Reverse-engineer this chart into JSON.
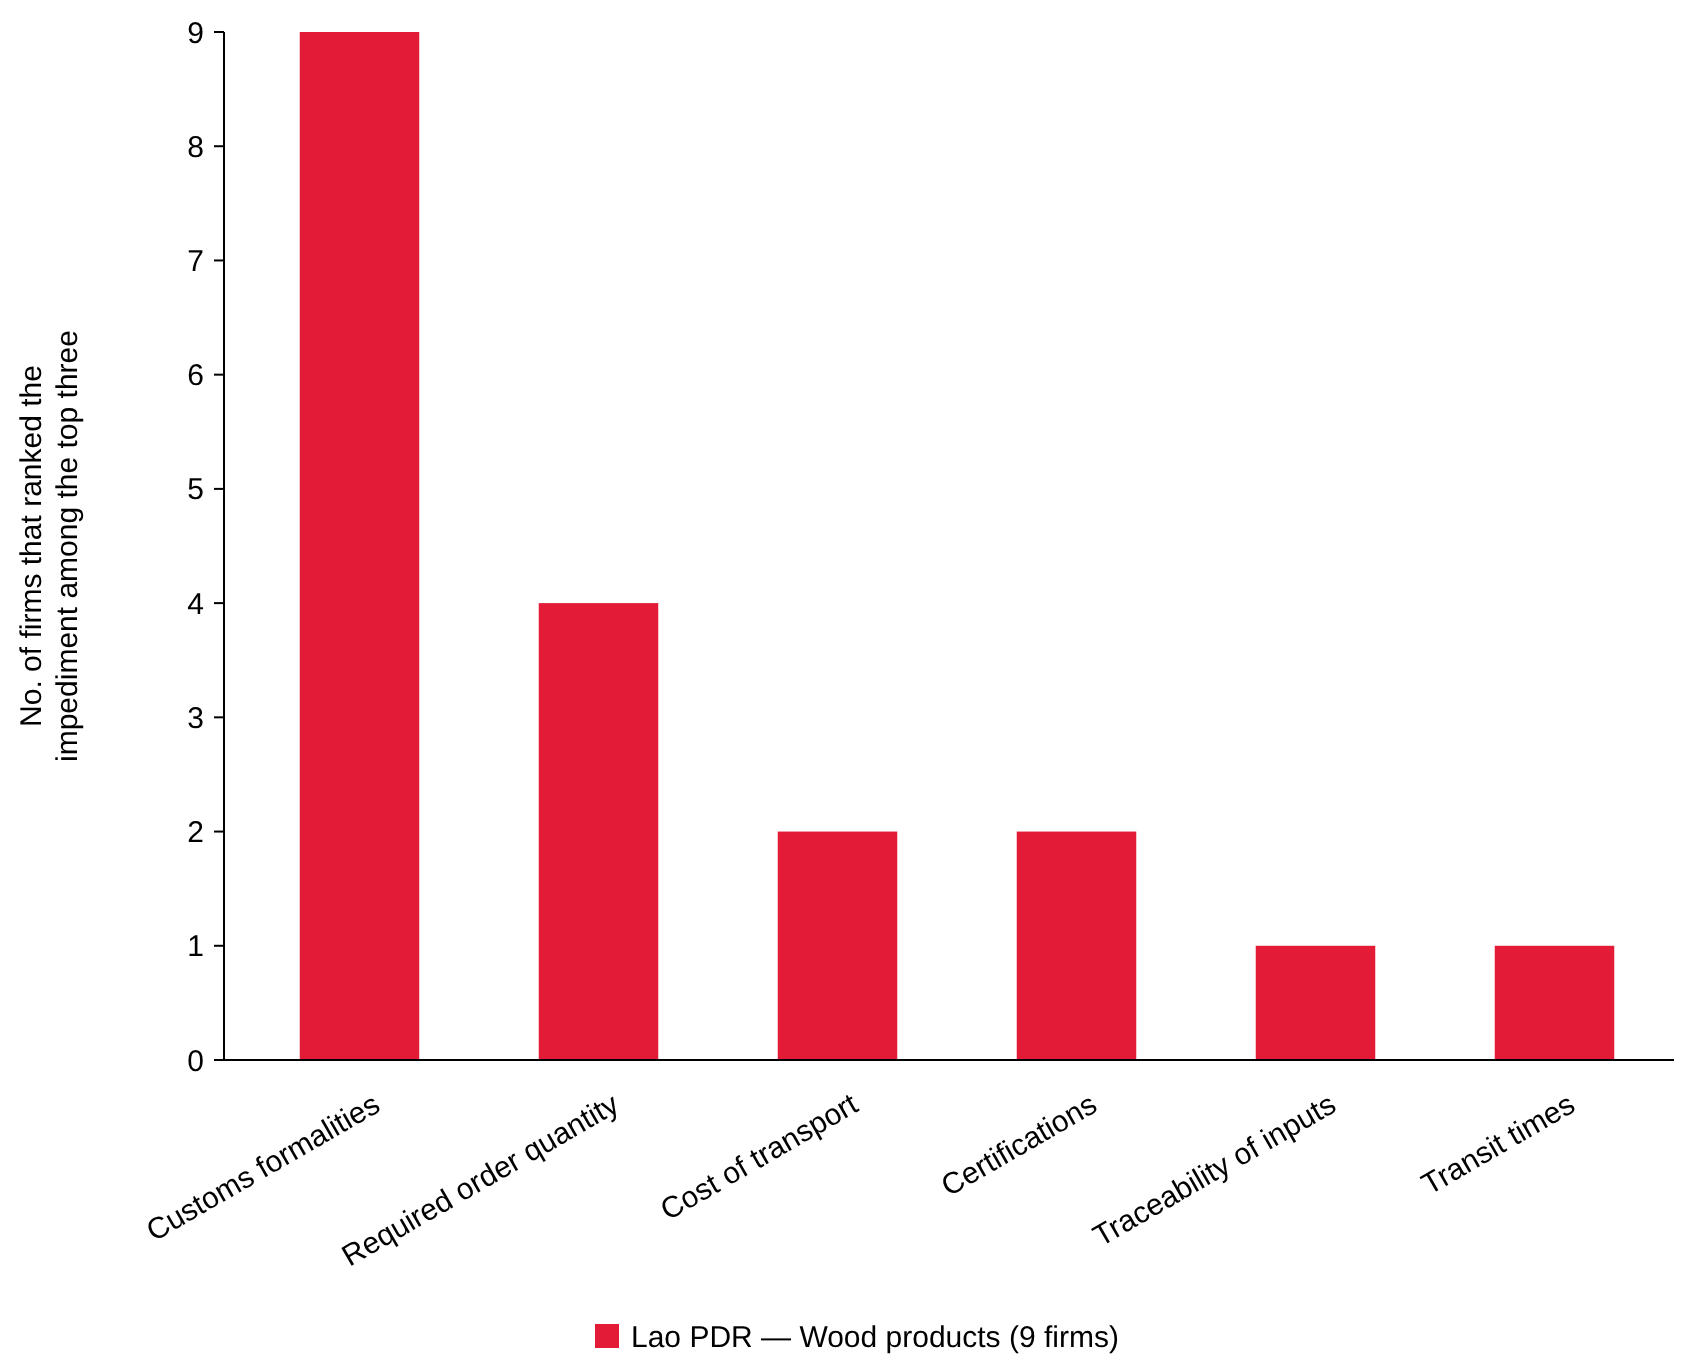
{
  "chart_data": {
    "type": "bar",
    "ylabel": "No. of firms that ranked the impediment among the top three",
    "categories": [
      "Customs formalities",
      "Required order quantity",
      "Cost of transport",
      "Certifications",
      "Traceability of inputs",
      "Transit times"
    ],
    "series": [
      {
        "name": "Lao PDR — Wood products (9 firms)",
        "color": "#e31b37",
        "values": [
          9,
          4,
          2,
          2,
          1,
          1
        ]
      }
    ],
    "ylim": [
      0,
      9
    ],
    "yticks": [
      0,
      1,
      2,
      3,
      4,
      5,
      6,
      7,
      8,
      9
    ],
    "grid": false,
    "legend": "bottom"
  }
}
